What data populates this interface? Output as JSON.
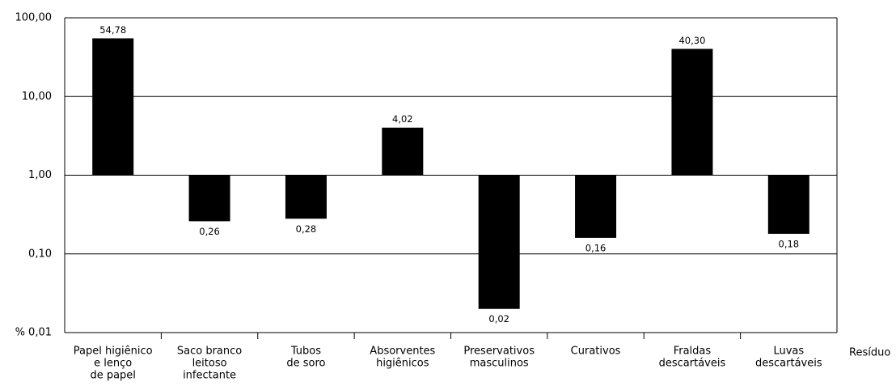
{
  "chart_data": {
    "type": "bar",
    "log_scale": true,
    "baseline": 1,
    "categories": [
      [
        "Papel higiênico",
        "e lenço",
        "de papel"
      ],
      [
        "Saco branco",
        "leitoso",
        "infectante"
      ],
      [
        "Tubos",
        "de soro"
      ],
      [
        "Absorventes",
        "higiênicos"
      ],
      [
        "Preservativos",
        "masculinos"
      ],
      [
        "Curativos"
      ],
      [
        "Fraldas",
        "descartáveis"
      ],
      [
        "Luvas",
        "descartáveis"
      ]
    ],
    "values": [
      54.78,
      0.26,
      0.28,
      4.02,
      0.02,
      0.16,
      40.3,
      0.18
    ],
    "value_labels": [
      "54,78",
      "0,26",
      "0,28",
      "4,02",
      "0,02",
      "0,16",
      "40,30",
      "0,18"
    ],
    "color": "#000000",
    "x_label": "Resíduo",
    "ylim": [
      0.01,
      100
    ],
    "yticks": [
      {
        "value": 0.01,
        "label": "% 0,01"
      },
      {
        "value": 0.1,
        "label": "0,10"
      },
      {
        "value": 1,
        "label": "1,00"
      },
      {
        "value": 10,
        "label": "10,00"
      },
      {
        "value": 100,
        "label": "100,00"
      }
    ],
    "grid": true
  }
}
